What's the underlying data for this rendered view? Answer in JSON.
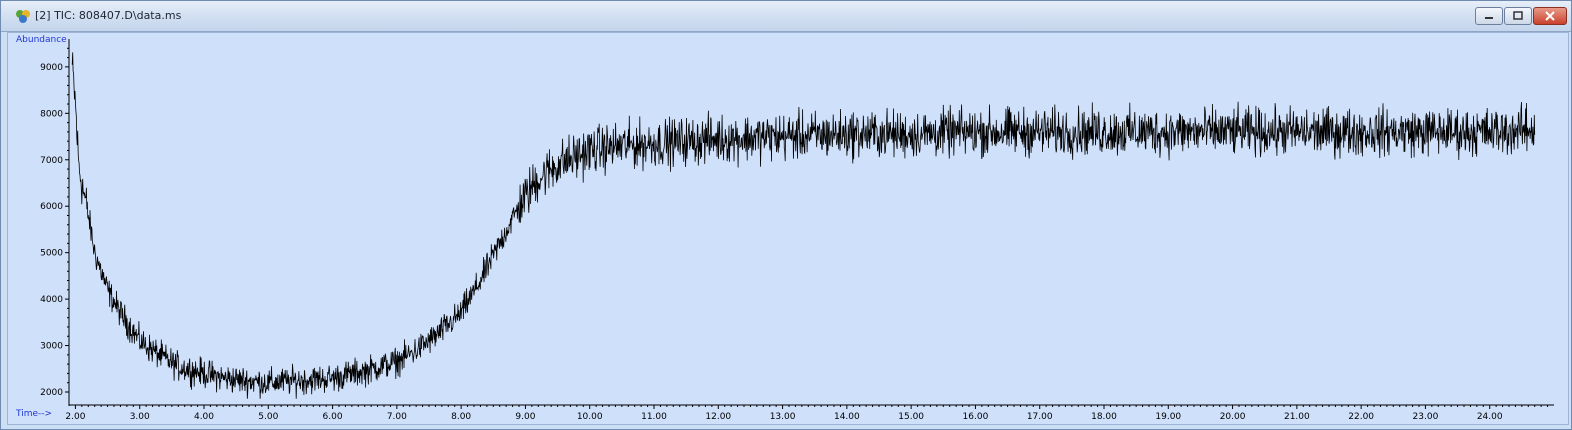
{
  "window": {
    "title": "[2] TIC: 808407.D\\data.ms",
    "icon": "chemstation-app-icon",
    "buttons": [
      "minimize-icon",
      "restore-icon",
      "close-icon"
    ]
  },
  "colors": {
    "background": "#cfe0fa",
    "trace": "#000000",
    "axis_title": "#1f36d6"
  },
  "chart_data": {
    "type": "line",
    "title": "",
    "xlabel": "Time-->",
    "ylabel": "Abundance",
    "xlim": [
      1.9,
      25.0
    ],
    "ylim": [
      1720,
      9600
    ],
    "grid": false,
    "x_ticks": [
      "2.00",
      "3.00",
      "4.00",
      "5.00",
      "6.00",
      "7.00",
      "8.00",
      "9.00",
      "10.00",
      "11.00",
      "12.00",
      "13.00",
      "14.00",
      "15.00",
      "16.00",
      "17.00",
      "18.00",
      "19.00",
      "20.00",
      "21.00",
      "22.00",
      "23.00",
      "24.00"
    ],
    "y_ticks": [
      "2000",
      "3000",
      "4000",
      "5000",
      "6000",
      "7000",
      "8000",
      "9000"
    ],
    "series": [
      {
        "noise_amplitude": 500,
        "x": [
          1.95,
          2.0,
          2.05,
          2.1,
          2.2,
          2.3,
          2.5,
          2.7,
          2.9,
          3.0,
          3.3,
          3.6,
          4.0,
          4.3,
          4.6,
          5.0,
          5.5,
          6.0,
          6.5,
          7.0,
          7.3,
          7.6,
          8.0,
          8.3,
          8.6,
          8.9,
          9.2,
          9.5,
          10.0,
          10.5,
          11.0,
          11.5,
          12.0,
          13.0,
          14.0,
          15.0,
          16.0,
          17.0,
          18.0,
          19.0,
          20.0,
          21.0,
          22.0,
          23.0,
          24.0,
          24.7
        ],
        "y": [
          9000,
          8200,
          6900,
          6500,
          5800,
          5000,
          4200,
          3700,
          3300,
          3100,
          2800,
          2550,
          2400,
          2300,
          2250,
          2200,
          2250,
          2300,
          2450,
          2650,
          2900,
          3200,
          3700,
          4400,
          5200,
          6000,
          6600,
          6900,
          7200,
          7300,
          7350,
          7400,
          7450,
          7500,
          7550,
          7550,
          7600,
          7600,
          7600,
          7600,
          7600,
          7600,
          7600,
          7600,
          7600,
          7650
        ]
      }
    ]
  }
}
